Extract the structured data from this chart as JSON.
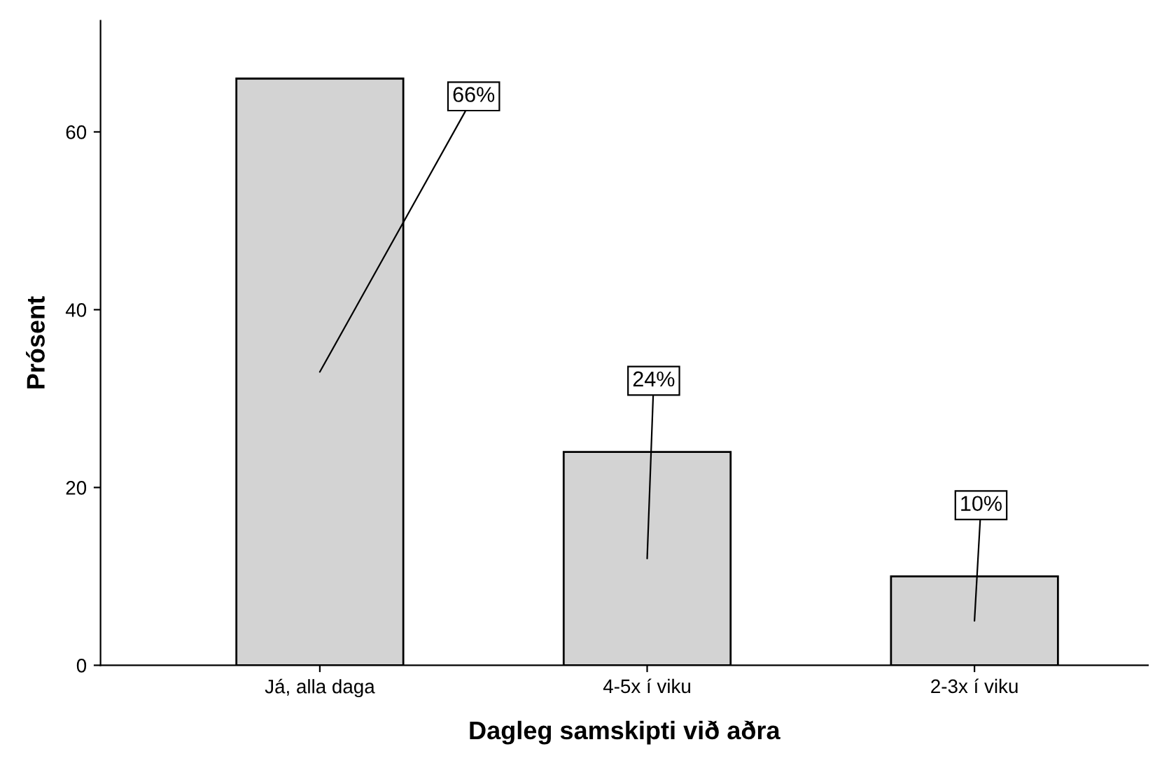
{
  "chart_data": {
    "type": "bar",
    "xlabel": "Dagleg samskipti við aðra",
    "ylabel": "Prósent",
    "categories": [
      "Já, alla daga",
      "4-5x í viku",
      "2-3x í viku"
    ],
    "values": [
      66,
      24,
      10
    ],
    "value_labels": [
      "66%",
      "24%",
      "10%"
    ],
    "color": "#d3d3d3",
    "ylim": [
      0,
      72.5
    ],
    "yticks": [
      0,
      20,
      40,
      60
    ],
    "grid": false,
    "legend": false
  }
}
